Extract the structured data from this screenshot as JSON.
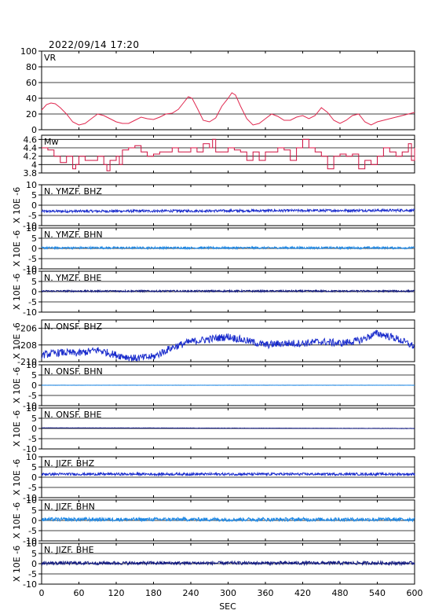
{
  "header": {
    "timestamp": "2022/09/14 17:20"
  },
  "colors": {
    "vr_trace": "#e0284f",
    "mw_trace": "#d01040",
    "bhz_trace": "#1a2ccc",
    "bhn_trace": "#1e88e5",
    "bhe_trace": "#101880",
    "grid": "#000000"
  },
  "chart_data": {
    "type": "line",
    "xlabel": "SEC",
    "xlim": [
      0,
      600
    ],
    "xticks": [
      0,
      60,
      120,
      180,
      240,
      300,
      360,
      420,
      480,
      540,
      600
    ],
    "panels": [
      {
        "id": "vr",
        "label": "VR",
        "ylim": [
          0,
          100
        ],
        "yticks": [
          0,
          20,
          40,
          60,
          80,
          100
        ],
        "color_key": "vr_trace",
        "x": [
          0,
          8,
          15,
          22,
          30,
          40,
          50,
          60,
          70,
          80,
          90,
          100,
          110,
          120,
          130,
          140,
          150,
          160,
          170,
          180,
          190,
          200,
          210,
          220,
          230,
          236,
          242,
          250,
          260,
          270,
          280,
          290,
          300,
          306,
          312,
          320,
          330,
          340,
          350,
          360,
          370,
          380,
          390,
          400,
          410,
          420,
          430,
          440,
          450,
          460,
          470,
          480,
          490,
          500,
          510,
          520,
          530,
          540,
          550,
          560,
          570,
          580,
          590,
          600
        ],
        "y": [
          25,
          32,
          34,
          33,
          28,
          20,
          10,
          6,
          8,
          14,
          20,
          18,
          14,
          10,
          8,
          8,
          12,
          16,
          14,
          13,
          16,
          20,
          21,
          26,
          36,
          42,
          40,
          28,
          12,
          10,
          15,
          30,
          40,
          47,
          44,
          30,
          14,
          6,
          8,
          14,
          20,
          17,
          12,
          12,
          16,
          18,
          14,
          18,
          28,
          22,
          12,
          8,
          12,
          18,
          20,
          10,
          6,
          10,
          12,
          14,
          16,
          18,
          20,
          22
        ]
      },
      {
        "id": "mw",
        "label": "Mw",
        "ylim": [
          3.8,
          4.7
        ],
        "yticks": [
          3.8,
          4.0,
          4.2,
          4.4,
          4.6
        ],
        "color_key": "mw_trace",
        "x": [
          0,
          10,
          20,
          30,
          40,
          50,
          55,
          60,
          70,
          80,
          90,
          100,
          105,
          110,
          120,
          125,
          130,
          140,
          150,
          160,
          170,
          180,
          190,
          200,
          210,
          220,
          230,
          240,
          250,
          260,
          270,
          275,
          280,
          290,
          300,
          310,
          320,
          330,
          340,
          350,
          360,
          370,
          380,
          390,
          400,
          410,
          420,
          430,
          440,
          450,
          460,
          470,
          480,
          490,
          500,
          510,
          520,
          530,
          540,
          550,
          560,
          570,
          580,
          590,
          595,
          600
        ],
        "y": [
          4.4,
          4.35,
          4.2,
          4.05,
          4.2,
          3.9,
          4.0,
          4.2,
          4.1,
          4.1,
          4.2,
          4.0,
          3.85,
          4.1,
          4.2,
          4.0,
          4.35,
          4.4,
          4.45,
          4.3,
          4.2,
          4.25,
          4.3,
          4.3,
          4.4,
          4.3,
          4.3,
          4.4,
          4.3,
          4.5,
          4.4,
          4.6,
          4.3,
          4.3,
          4.4,
          4.35,
          4.3,
          4.1,
          4.3,
          4.1,
          4.3,
          4.3,
          4.4,
          4.35,
          4.1,
          4.4,
          4.6,
          4.4,
          4.3,
          4.2,
          3.9,
          4.2,
          4.25,
          4.2,
          4.25,
          3.9,
          4.1,
          4.0,
          4.2,
          4.4,
          4.3,
          4.2,
          4.3,
          4.5,
          4.1,
          4.4
        ]
      },
      {
        "id": "ymzf-bhz",
        "label": "N. YMZF. BHZ",
        "ylabel": "X 10E -6",
        "ylim": [
          -10,
          10
        ],
        "yticks": [
          -10,
          -5,
          0,
          5,
          10
        ],
        "color_key": "bhz_trace",
        "baseline": -3,
        "noise": 0.6,
        "drift": 0.5
      },
      {
        "id": "ymzf-bhn",
        "label": "N. YMZF. BHN",
        "ylabel": "X 10E -6",
        "ylim": [
          -10,
          10
        ],
        "yticks": [
          -10,
          -5,
          0,
          5,
          10
        ],
        "color_key": "bhn_trace",
        "baseline": 0.3,
        "noise": 0.5,
        "drift": 0
      },
      {
        "id": "ymzf-bhe",
        "label": "N. YMZF. BHE",
        "ylabel": "X 10E -6",
        "ylim": [
          -10,
          10
        ],
        "yticks": [
          -10,
          -5,
          0,
          5,
          10
        ],
        "color_key": "bhe_trace",
        "baseline": 0.3,
        "noise": 0.4,
        "drift": 0
      },
      {
        "id": "onsf-bhz",
        "label": "N. ONSF. BHZ",
        "ylabel": "X 10E -6",
        "ylim": [
          -210,
          -205
        ],
        "yticks": [
          -210,
          -208,
          -206
        ],
        "color_key": "bhz_trace",
        "x": [
          0,
          30,
          60,
          90,
          120,
          150,
          180,
          210,
          240,
          270,
          300,
          330,
          360,
          390,
          420,
          450,
          480,
          510,
          540,
          570,
          600
        ],
        "y": [
          -209.2,
          -208.9,
          -209.0,
          -208.6,
          -209.2,
          -209.6,
          -209.4,
          -208.3,
          -207.6,
          -207.3,
          -207.0,
          -207.5,
          -208.0,
          -207.8,
          -207.8,
          -207.6,
          -207.8,
          -207.5,
          -206.6,
          -207.2,
          -208.2
        ],
        "noise": 0.45
      },
      {
        "id": "onsf-bhn",
        "label": "N. ONSF. BHN",
        "ylabel": "X 10E -6",
        "ylim": [
          -10,
          10
        ],
        "yticks": [
          -10,
          -5,
          0,
          5,
          10
        ],
        "color_key": "bhn_trace",
        "baseline": 0,
        "noise": 0.05,
        "drift": 0
      },
      {
        "id": "onsf-bhe",
        "label": "N. ONSF. BHE",
        "ylabel": "X 10E -6",
        "ylim": [
          -10,
          10
        ],
        "yticks": [
          -10,
          -5,
          0,
          5,
          10
        ],
        "color_key": "bhe_trace",
        "baseline": 0.3,
        "noise": 0.08,
        "drift": -0.3
      },
      {
        "id": "jizf-bhz",
        "label": "N. JIZF. BHZ",
        "ylabel": "X 10E -6",
        "ylim": [
          -10,
          10
        ],
        "yticks": [
          -10,
          -5,
          0,
          5,
          10
        ],
        "color_key": "bhz_trace",
        "baseline": 1.5,
        "noise": 0.6,
        "drift": 0
      },
      {
        "id": "jizf-bhn",
        "label": "N. JIZF. BHN",
        "ylabel": "X 10E -6",
        "ylim": [
          -10,
          10
        ],
        "yticks": [
          -10,
          -5,
          0,
          5,
          10
        ],
        "color_key": "bhn_trace",
        "baseline": 0.5,
        "noise": 0.9,
        "drift": 0
      },
      {
        "id": "jizf-bhe",
        "label": "N. JIZF. BHE",
        "ylabel": "X 10E -6",
        "ylim": [
          -10,
          10
        ],
        "yticks": [
          -10,
          -5,
          0,
          5,
          10
        ],
        "color_key": "bhe_trace",
        "baseline": 0.3,
        "noise": 0.8,
        "drift": 0
      }
    ]
  }
}
